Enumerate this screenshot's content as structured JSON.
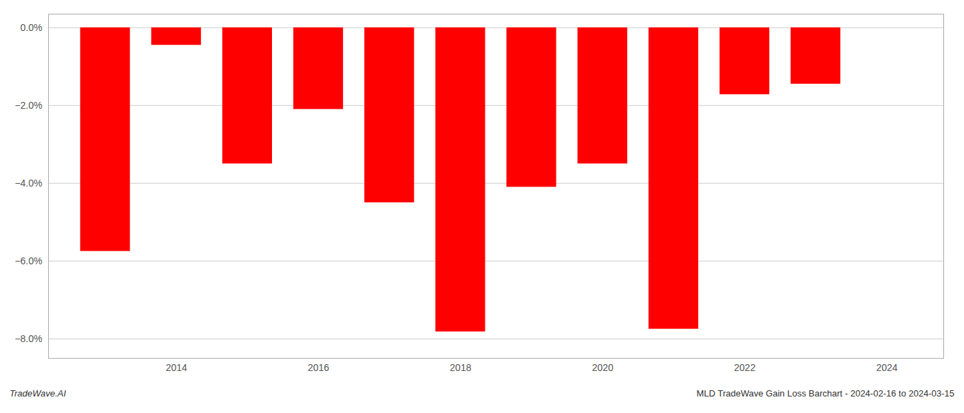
{
  "chart_data": {
    "type": "bar",
    "x": [
      2013,
      2014,
      2015,
      2016,
      2017,
      2018,
      2019,
      2020,
      2021,
      2022,
      2023
    ],
    "values": [
      -5.75,
      -0.45,
      -3.5,
      -2.1,
      -4.5,
      -7.82,
      -4.1,
      -3.5,
      -7.75,
      -1.72,
      -1.45
    ],
    "color": "#ff0000",
    "xlim": [
      2012.2,
      2024.8
    ],
    "xticks": [
      2014,
      2016,
      2018,
      2020,
      2022,
      2024
    ],
    "ylim": [
      -8.5,
      0.35
    ],
    "yticks": [
      {
        "value": 0.0,
        "label": "0.0%"
      },
      {
        "value": -2.0,
        "label": "−2.0%"
      },
      {
        "value": -4.0,
        "label": "−4.0%"
      },
      {
        "value": -6.0,
        "label": "−6.0%"
      },
      {
        "value": -8.0,
        "label": "−8.0%"
      }
    ],
    "grid": true,
    "annotations": [
      "TradeWave.AI",
      "MLD TradeWave Gain Loss Barchart - 2024-02-16 to 2024-03-15"
    ]
  }
}
